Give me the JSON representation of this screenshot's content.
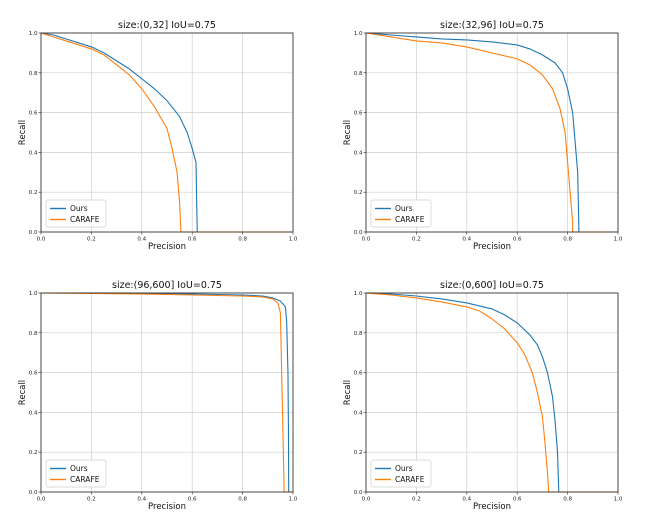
{
  "chart_data": [
    {
      "type": "line",
      "title": "size:(0,32] IoU=0.75",
      "xlabel": "Precision",
      "ylabel": "Recall",
      "xlim": [
        0,
        1
      ],
      "ylim": [
        0,
        1
      ],
      "xticks": [
        "0.0",
        "0.2",
        "0.4",
        "0.6",
        "0.8",
        "1.0"
      ],
      "yticks": [
        "0.0",
        "0.2",
        "0.4",
        "0.6",
        "0.8",
        "1.0"
      ],
      "grid": true,
      "legend_position": "lower-left",
      "series": [
        {
          "name": "Ours",
          "color": "#1f77b4",
          "points": [
            [
              0.0,
              1.0
            ],
            [
              0.05,
              0.99
            ],
            [
              0.1,
              0.97
            ],
            [
              0.15,
              0.95
            ],
            [
              0.2,
              0.93
            ],
            [
              0.25,
              0.9
            ],
            [
              0.3,
              0.86
            ],
            [
              0.35,
              0.82
            ],
            [
              0.4,
              0.77
            ],
            [
              0.45,
              0.72
            ],
            [
              0.5,
              0.66
            ],
            [
              0.55,
              0.58
            ],
            [
              0.58,
              0.5
            ],
            [
              0.6,
              0.42
            ],
            [
              0.615,
              0.35
            ],
            [
              0.62,
              0.0
            ],
            [
              1.0,
              0.0
            ]
          ]
        },
        {
          "name": "CARAFE",
          "color": "#ff7f0e",
          "points": [
            [
              0.0,
              1.0
            ],
            [
              0.05,
              0.98
            ],
            [
              0.1,
              0.96
            ],
            [
              0.15,
              0.94
            ],
            [
              0.2,
              0.92
            ],
            [
              0.25,
              0.89
            ],
            [
              0.3,
              0.84
            ],
            [
              0.35,
              0.79
            ],
            [
              0.4,
              0.72
            ],
            [
              0.45,
              0.63
            ],
            [
              0.5,
              0.52
            ],
            [
              0.52,
              0.42
            ],
            [
              0.54,
              0.3
            ],
            [
              0.55,
              0.15
            ],
            [
              0.555,
              0.0
            ],
            [
              1.0,
              0.0
            ]
          ]
        }
      ]
    },
    {
      "type": "line",
      "title": "size:(32,96] IoU=0.75",
      "xlabel": "Precision",
      "ylabel": "Recall",
      "xlim": [
        0,
        1
      ],
      "ylim": [
        0,
        1
      ],
      "xticks": [
        "0.0",
        "0.2",
        "0.4",
        "0.6",
        "0.8",
        "1.0"
      ],
      "yticks": [
        "0.0",
        "0.2",
        "0.4",
        "0.6",
        "0.8",
        "1.0"
      ],
      "grid": true,
      "legend_position": "lower-left",
      "series": [
        {
          "name": "Ours",
          "color": "#1f77b4",
          "points": [
            [
              0.0,
              1.0
            ],
            [
              0.1,
              0.99
            ],
            [
              0.2,
              0.98
            ],
            [
              0.3,
              0.97
            ],
            [
              0.4,
              0.965
            ],
            [
              0.5,
              0.955
            ],
            [
              0.6,
              0.94
            ],
            [
              0.65,
              0.92
            ],
            [
              0.7,
              0.89
            ],
            [
              0.75,
              0.85
            ],
            [
              0.78,
              0.8
            ],
            [
              0.8,
              0.72
            ],
            [
              0.82,
              0.6
            ],
            [
              0.83,
              0.45
            ],
            [
              0.84,
              0.3
            ],
            [
              0.845,
              0.0
            ],
            [
              1.0,
              0.0
            ]
          ]
        },
        {
          "name": "CARAFE",
          "color": "#ff7f0e",
          "points": [
            [
              0.0,
              1.0
            ],
            [
              0.05,
              0.99
            ],
            [
              0.1,
              0.98
            ],
            [
              0.15,
              0.97
            ],
            [
              0.2,
              0.96
            ],
            [
              0.3,
              0.95
            ],
            [
              0.4,
              0.93
            ],
            [
              0.5,
              0.9
            ],
            [
              0.6,
              0.87
            ],
            [
              0.65,
              0.84
            ],
            [
              0.7,
              0.79
            ],
            [
              0.74,
              0.72
            ],
            [
              0.77,
              0.62
            ],
            [
              0.79,
              0.5
            ],
            [
              0.8,
              0.35
            ],
            [
              0.81,
              0.2
            ],
            [
              0.82,
              0.05
            ],
            [
              0.82,
              0.0
            ],
            [
              1.0,
              0.0
            ]
          ]
        }
      ]
    },
    {
      "type": "line",
      "title": "size:(96,600] IoU=0.75",
      "xlabel": "Precision",
      "ylabel": "Recall",
      "xlim": [
        0,
        1
      ],
      "ylim": [
        0,
        1
      ],
      "xticks": [
        "0.0",
        "0.2",
        "0.4",
        "0.6",
        "0.8",
        "1.0"
      ],
      "yticks": [
        "0.0",
        "0.2",
        "0.4",
        "0.6",
        "0.8",
        "1.0"
      ],
      "grid": true,
      "legend_position": "lower-left",
      "series": [
        {
          "name": "Ours",
          "color": "#1f77b4",
          "points": [
            [
              0.0,
              1.0
            ],
            [
              0.2,
              1.0
            ],
            [
              0.4,
              0.998
            ],
            [
              0.6,
              0.995
            ],
            [
              0.8,
              0.99
            ],
            [
              0.88,
              0.985
            ],
            [
              0.92,
              0.975
            ],
            [
              0.95,
              0.96
            ],
            [
              0.97,
              0.93
            ],
            [
              0.975,
              0.85
            ],
            [
              0.98,
              0.6
            ],
            [
              0.982,
              0.3
            ],
            [
              0.983,
              0.0
            ],
            [
              1.0,
              0.0
            ]
          ]
        },
        {
          "name": "CARAFE",
          "color": "#ff7f0e",
          "points": [
            [
              0.0,
              1.0
            ],
            [
              0.2,
              0.998
            ],
            [
              0.4,
              0.995
            ],
            [
              0.6,
              0.99
            ],
            [
              0.8,
              0.985
            ],
            [
              0.88,
              0.98
            ],
            [
              0.92,
              0.97
            ],
            [
              0.94,
              0.95
            ],
            [
              0.95,
              0.9
            ],
            [
              0.955,
              0.6
            ],
            [
              0.96,
              0.3
            ],
            [
              0.965,
              0.0
            ],
            [
              1.0,
              0.0
            ]
          ]
        }
      ]
    },
    {
      "type": "line",
      "title": "size:(0,600] IoU=0.75",
      "xlabel": "Precision",
      "ylabel": "Recall",
      "xlim": [
        0,
        1
      ],
      "ylim": [
        0,
        1
      ],
      "xticks": [
        "0.0",
        "0.2",
        "0.4",
        "0.6",
        "0.8",
        "1.0"
      ],
      "yticks": [
        "0.0",
        "0.2",
        "0.4",
        "0.6",
        "0.8",
        "1.0"
      ],
      "grid": true,
      "legend_position": "lower-left",
      "series": [
        {
          "name": "Ours",
          "color": "#1f77b4",
          "points": [
            [
              0.0,
              1.0
            ],
            [
              0.1,
              0.995
            ],
            [
              0.2,
              0.985
            ],
            [
              0.3,
              0.97
            ],
            [
              0.4,
              0.95
            ],
            [
              0.5,
              0.92
            ],
            [
              0.55,
              0.89
            ],
            [
              0.6,
              0.85
            ],
            [
              0.65,
              0.79
            ],
            [
              0.68,
              0.74
            ],
            [
              0.7,
              0.68
            ],
            [
              0.72,
              0.6
            ],
            [
              0.74,
              0.48
            ],
            [
              0.75,
              0.36
            ],
            [
              0.76,
              0.2
            ],
            [
              0.765,
              0.0
            ],
            [
              1.0,
              0.0
            ]
          ]
        },
        {
          "name": "CARAFE",
          "color": "#ff7f0e",
          "points": [
            [
              0.0,
              1.0
            ],
            [
              0.1,
              0.99
            ],
            [
              0.2,
              0.975
            ],
            [
              0.3,
              0.955
            ],
            [
              0.4,
              0.93
            ],
            [
              0.45,
              0.91
            ],
            [
              0.5,
              0.87
            ],
            [
              0.55,
              0.82
            ],
            [
              0.6,
              0.75
            ],
            [
              0.63,
              0.69
            ],
            [
              0.66,
              0.6
            ],
            [
              0.68,
              0.5
            ],
            [
              0.7,
              0.38
            ],
            [
              0.71,
              0.25
            ],
            [
              0.72,
              0.1
            ],
            [
              0.725,
              0.0
            ],
            [
              1.0,
              0.0
            ]
          ]
        }
      ]
    }
  ]
}
